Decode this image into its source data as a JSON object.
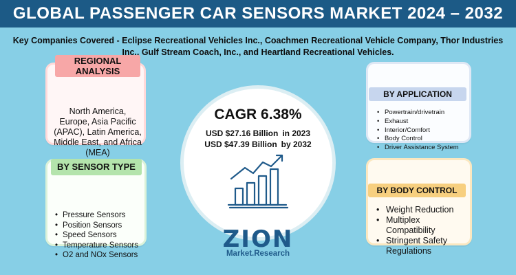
{
  "title": "GLOBAL PASSENGER CAR SENSORS MARKET 2024 – 2032",
  "subtitle": "Key Companies Covered - Eclipse Recreational Vehicles Inc., Coachmen Recreational Vehicle Company, Thor Industries Inc., Gulf Stream Coach, Inc., and Heartland Recreational Vehicles.",
  "regional": {
    "heading": "REGIONAL ANALYSIS",
    "text": "North America, Europe, Asia Pacific (APAC), Latin America, Middle East, and Africa (MEA)"
  },
  "sensor_type": {
    "heading": "BY SENSOR TYPE",
    "items": [
      "Pressure Sensors",
      "Position Sensors",
      "Speed Sensors",
      "Temperature Sensors",
      "O2 and NOx Sensors"
    ]
  },
  "application": {
    "heading": "BY APPLICATION",
    "items": [
      "Powertrain/drivetrain",
      "Exhaust",
      "Interior/Comfort",
      "Body Control",
      "Driver Assistance System"
    ]
  },
  "body_control": {
    "heading": "BY BODY CONTROL",
    "items": [
      "Weight Reduction",
      "Multiplex Compatibility",
      "Stringent Safety Regulations"
    ]
  },
  "center": {
    "cagr": "CAGR 6.38%",
    "value_2023": "USD $27.16 Billion",
    "year_2023": "in 2023",
    "value_2032": "USD $47.39 Billion",
    "year_2032": "by 2032"
  },
  "logo": {
    "brand": "ZION",
    "line2": "Market.Research"
  },
  "colors": {
    "background": "#87cfe6",
    "title_bar": "#1c5a86",
    "regional_tag": "#f7a7a7",
    "sensor_tag": "#b4e4ac",
    "app_tag": "#c7d6ee",
    "body_tag": "#f7cf7f"
  },
  "icons": [
    "growth-chart-icon",
    "zion-logo"
  ]
}
